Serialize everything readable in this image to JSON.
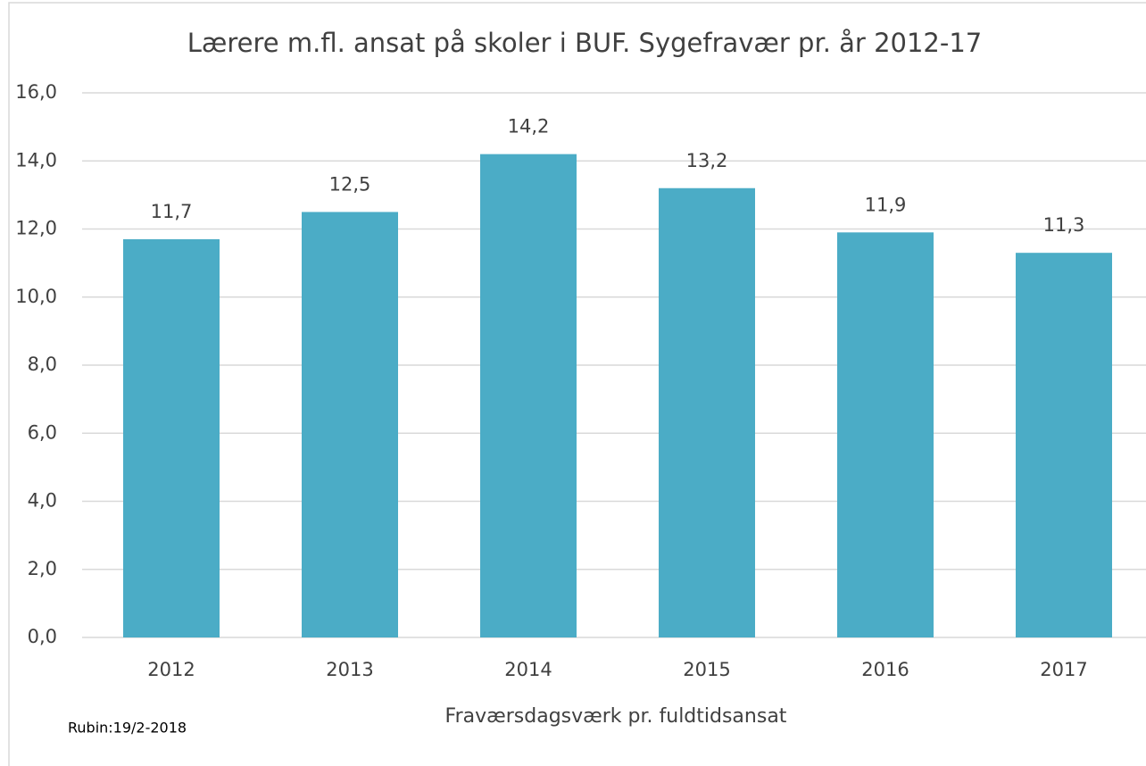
{
  "chart_data": {
    "type": "bar",
    "title": "Lærere m.fl. ansat på skoler i BUF. Sygefravær pr. år 2012-17",
    "x_label": "Fraværsdagsværk pr. fuldtidsansat",
    "note": "Rubin:19/2-2018",
    "categories": [
      "2012",
      "2013",
      "2014",
      "2015",
      "2016",
      "2017"
    ],
    "values": [
      11.7,
      12.5,
      14.2,
      13.2,
      11.9,
      11.3
    ],
    "value_labels": [
      "11,7",
      "12,5",
      "14,2",
      "13,2",
      "11,9",
      "11,3"
    ],
    "color": "#4bacc6",
    "ylim": [
      0,
      16
    ],
    "yticks": [
      {
        "value": 0,
        "label": "0,0"
      },
      {
        "value": 2,
        "label": "2,0"
      },
      {
        "value": 4,
        "label": "4,0"
      },
      {
        "value": 6,
        "label": "6,0"
      },
      {
        "value": 8,
        "label": "8,0"
      },
      {
        "value": 10,
        "label": "10,0"
      },
      {
        "value": 12,
        "label": "12,0"
      },
      {
        "value": 14,
        "label": "14,0"
      },
      {
        "value": 16,
        "label": "16,0"
      }
    ],
    "grid": true
  }
}
